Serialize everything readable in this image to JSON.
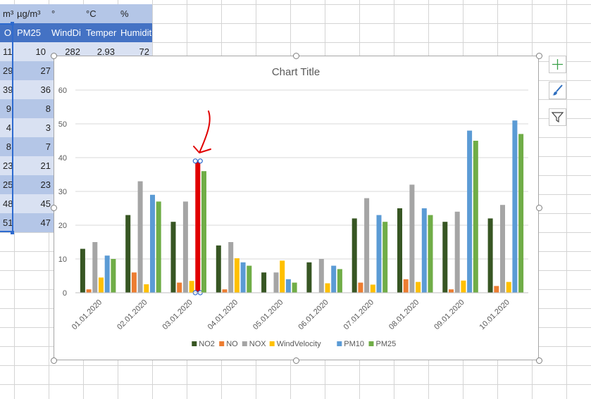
{
  "sheet": {
    "units": [
      "m³",
      "µg/m³",
      "°",
      "°C",
      "%"
    ],
    "headers": [
      "O",
      "PM25",
      "WindDi",
      "Temper",
      "Humidit"
    ],
    "first_row": {
      "col_a": "11",
      "col_b": "10",
      "col_c": "282",
      "col_d": "2.93",
      "col_e": "72"
    },
    "col_a": [
      "29",
      "39",
      "9",
      "4",
      "8",
      "23",
      "25",
      "48",
      "51"
    ],
    "col_b": [
      "27",
      "36",
      "8",
      "3",
      "7",
      "21",
      "23",
      "45",
      "47"
    ]
  },
  "chart": {
    "title": "Chart Title",
    "legend": [
      {
        "name": "NO2",
        "color": "#375623"
      },
      {
        "name": "NO",
        "color": "#ed7d31"
      },
      {
        "name": "NOX",
        "color": "#a5a5a5"
      },
      {
        "name": "WindVelocity",
        "color": "#ffc000"
      },
      {
        "name": "PM10",
        "color": "#5b9bd5"
      },
      {
        "name": "PM25",
        "color": "#70ad47"
      }
    ],
    "selected_color": "#e10000",
    "annotation_color": "#e10000"
  },
  "side_buttons": [
    {
      "icon": "plus-icon"
    },
    {
      "icon": "brush-icon"
    },
    {
      "icon": "filter-icon"
    }
  ],
  "chart_data": {
    "type": "bar",
    "title": "Chart Title",
    "xlabel": "",
    "ylabel": "",
    "ylim": [
      0,
      60
    ],
    "yticks": [
      0,
      10,
      20,
      30,
      40,
      50,
      60
    ],
    "grid": true,
    "legend_position": "bottom",
    "categories": [
      "01.01.2020",
      "02.01.2020",
      "03.01.2020",
      "04.01.2020",
      "05.01.2020",
      "06.01.2020",
      "07.01.2020",
      "08.01.2020",
      "09.01.2020",
      "10.01.2020"
    ],
    "series": [
      {
        "name": "NO2",
        "values": [
          13,
          23,
          21,
          14,
          6,
          9,
          22,
          25,
          21,
          22
        ]
      },
      {
        "name": "NO",
        "values": [
          1,
          6,
          3,
          1,
          0,
          0,
          3,
          4,
          1,
          2
        ]
      },
      {
        "name": "NOX",
        "values": [
          15,
          33,
          27,
          15,
          6,
          10,
          28,
          32,
          24,
          26
        ]
      },
      {
        "name": "WindVelocity",
        "values": [
          4.5,
          2.5,
          3.5,
          10.2,
          9.5,
          2.8,
          2.4,
          3.2,
          3.6,
          3.2
        ]
      },
      {
        "name": "PM10",
        "values": [
          11,
          29,
          39,
          9,
          4,
          8,
          23,
          25,
          48,
          51
        ]
      },
      {
        "name": "PM25",
        "values": [
          10,
          27,
          36,
          8,
          3,
          7,
          21,
          23,
          45,
          47
        ]
      }
    ],
    "selected": {
      "series": "PM10",
      "category": "03.01.2020"
    }
  }
}
